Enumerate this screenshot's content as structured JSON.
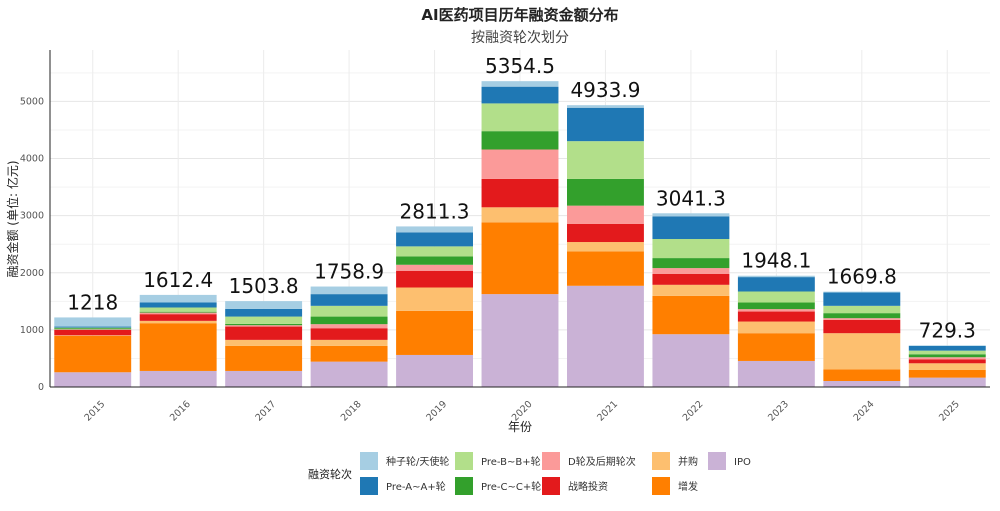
{
  "chart_data": {
    "type": "bar",
    "stacked": true,
    "title": "AI医药项目历年融资金额分布",
    "subtitle": "按融资轮次划分",
    "xlabel": "年份",
    "ylabel": "融资金额 (单位: 亿元)",
    "ylim": [
      0,
      5900
    ],
    "yticks": [
      0,
      1000,
      2000,
      3000,
      4000,
      5000
    ],
    "grid": true,
    "legend_title": "融资轮次",
    "legend_position": "bottom",
    "categories": [
      "2015",
      "2016",
      "2017",
      "2018",
      "2019",
      "2020",
      "2021",
      "2022",
      "2023",
      "2024",
      "2025"
    ],
    "totals": [
      "1218",
      "1612.4",
      "1503.8",
      "1758.9",
      "2811.3",
      "5354.5",
      "4933.9",
      "3041.3",
      "1948.1",
      "1669.8",
      "729.3"
    ],
    "series": [
      {
        "name": "IPO",
        "color": "#cab2d6",
        "values": [
          258,
          281,
          281,
          444,
          561,
          1626,
          1772,
          924,
          456,
          105,
          164
        ]
      },
      {
        "name": "增发",
        "color": "#ff7f00",
        "values": [
          637,
          836,
          438,
          275,
          772,
          1257,
          602,
          672,
          486,
          205,
          134
        ]
      },
      {
        "name": "并购",
        "color": "#fdbf6f",
        "values": [
          10,
          41,
          106,
          106,
          409,
          263,
          164,
          193,
          204,
          632,
          117
        ]
      },
      {
        "name": "战略投资",
        "color": "#e31a1c",
        "values": [
          95,
          117,
          233,
          204,
          293,
          497,
          316,
          193,
          175,
          233,
          70
        ]
      },
      {
        "name": "D轮及后期轮次",
        "color": "#fb9a99",
        "values": [
          10,
          28,
          24,
          71,
          105,
          515,
          321,
          100,
          42,
          30,
          36
        ]
      },
      {
        "name": "Pre-C~C+轮",
        "color": "#33a02c",
        "values": [
          20,
          15,
          23,
          133,
          146,
          321,
          468,
          175,
          116,
          88,
          52
        ]
      },
      {
        "name": "Pre-B~B+轮",
        "color": "#b2df8a",
        "values": [
          10,
          74,
          128,
          188,
          176,
          486,
          661,
          334,
          193,
          128,
          64
        ]
      },
      {
        "name": "Pre-A~A+轮",
        "color": "#1f78b4",
        "values": [
          18,
          88,
          135,
          205,
          245,
          293,
          585,
          397,
          252,
          233,
          82
        ]
      },
      {
        "name": "种子轮/天使轮",
        "color": "#a6cee3",
        "values": [
          160,
          132.4,
          135.8,
          132.9,
          104.3,
          96.5,
          44.9,
          53.3,
          24.1,
          15.8,
          10.3
        ]
      }
    ],
    "legend_order": [
      "种子轮/天使轮",
      "Pre-B~B+轮",
      "D轮及后期轮次",
      "并购",
      "IPO",
      "Pre-A~A+轮",
      "Pre-C~C+轮",
      "战略投资",
      "增发"
    ]
  }
}
